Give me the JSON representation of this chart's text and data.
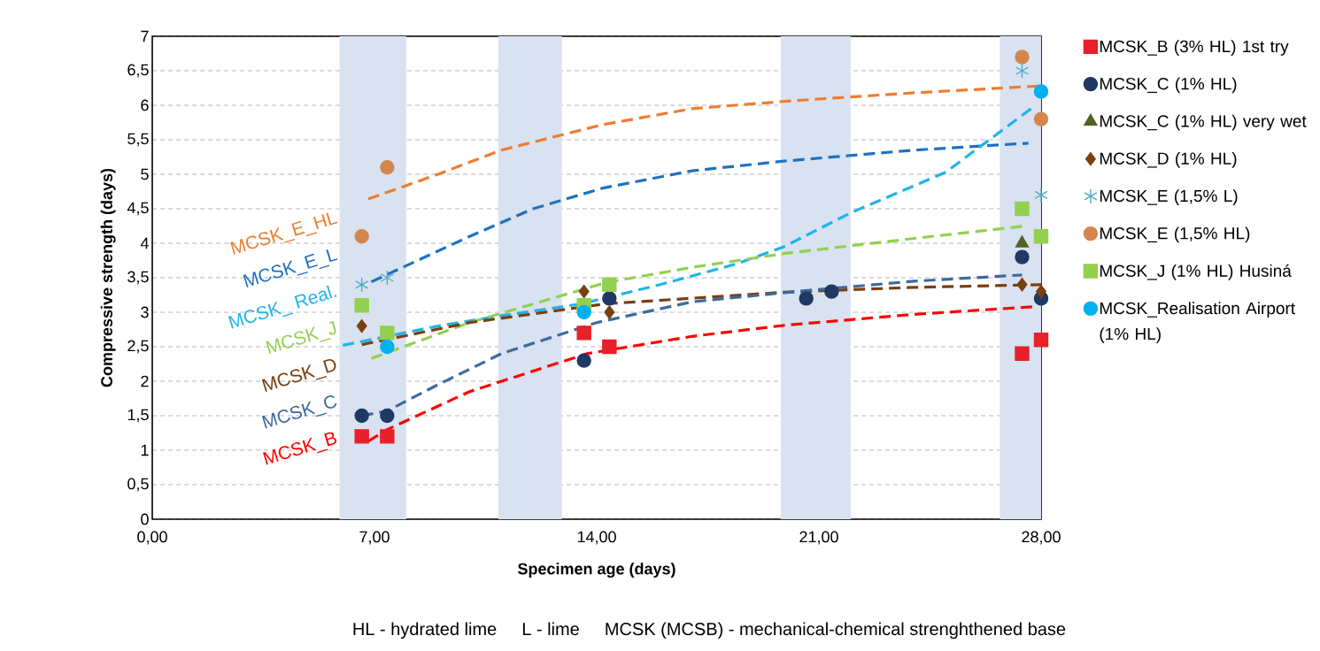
{
  "chart_data": {
    "type": "scatter",
    "xlabel": "Specimen age (days)",
    "ylabel": "Compressive strength (days)",
    "xlim": [
      0,
      28
    ],
    "ylim": [
      0,
      7
    ],
    "xticks": [
      {
        "value": 0,
        "label": "0,00"
      },
      {
        "value": 7,
        "label": "7,00"
      },
      {
        "value": 14,
        "label": "14,00"
      },
      {
        "value": 21,
        "label": "21,00"
      },
      {
        "value": 28,
        "label": "28,00"
      }
    ],
    "yticks": [
      0,
      {
        "value": 0.5,
        "label": "0,5"
      },
      1,
      {
        "value": 1.5,
        "label": "1,5"
      },
      2,
      {
        "value": 2.5,
        "label": "2,5"
      },
      3,
      {
        "value": 3.5,
        "label": "3,5"
      },
      4,
      {
        "value": 4.5,
        "label": "4,5"
      },
      5,
      {
        "value": 5.5,
        "label": "5,5"
      },
      6,
      {
        "value": 6.5,
        "label": "6,5"
      },
      7
    ],
    "grid": "y",
    "legend": "right",
    "bands": [
      {
        "axis": "x",
        "from": 5.9,
        "to": 8.0,
        "color": "#d9e2f1"
      },
      {
        "axis": "x",
        "from": 10.9,
        "to": 12.9,
        "color": "#d9e2f1"
      },
      {
        "axis": "x",
        "from": 19.8,
        "to": 22.0,
        "color": "#d9e2f1"
      },
      {
        "axis": "x",
        "from": 26.7,
        "to": 28,
        "color": "#d9e2f1"
      }
    ],
    "series": [
      {
        "type": "line",
        "name": "MCSK_E_HL",
        "color": "#ed7d31",
        "line_style": "dashed",
        "marker": "none",
        "x": [
          6.8,
          9,
          11,
          14.2,
          17,
          20,
          24,
          28
        ],
        "values": [
          4.64,
          5.0,
          5.35,
          5.72,
          5.95,
          6.06,
          6.18,
          6.28
        ]
      },
      {
        "type": "line",
        "name": "MCSK_E_L",
        "color": "#1f72c0",
        "line_style": "dashed",
        "marker": "none",
        "x": [
          6.9,
          10,
          12,
          14.2,
          17,
          19.9,
          24,
          27.6
        ],
        "values": [
          3.44,
          4.1,
          4.5,
          4.8,
          5.05,
          5.19,
          5.35,
          5.45
        ]
      },
      {
        "type": "line",
        "name": "MCSK_ Real.",
        "color": "#1fb4ea",
        "line_style": "dashed",
        "marker": "none",
        "x": [
          6.0,
          9,
          11,
          13.5,
          16,
          18.4,
          19.9,
          22,
          25,
          27.8
        ],
        "values": [
          2.52,
          2.8,
          2.95,
          3.12,
          3.4,
          3.7,
          3.95,
          4.44,
          5.03,
          5.99
        ]
      },
      {
        "type": "line",
        "name": "MCSK_J",
        "color": "#92d050",
        "line_style": "dashed",
        "marker": "none",
        "x": [
          6.9,
          10,
          14.3,
          17,
          19.9,
          24,
          27.5
        ],
        "values": [
          2.33,
          2.85,
          3.43,
          3.65,
          3.85,
          4.07,
          4.25
        ]
      },
      {
        "type": "line",
        "name": "MCSK_D",
        "color": "#7b3f10",
        "line_style": "dashed",
        "marker": "none",
        "x": [
          6.6,
          10,
          14.25,
          19.9,
          24,
          28
        ],
        "values": [
          2.53,
          2.85,
          3.12,
          3.29,
          3.36,
          3.4
        ]
      },
      {
        "type": "line",
        "name": "MCSK_C",
        "color": "#3d6aa0",
        "line_style": "dashed",
        "marker": "none",
        "x": [
          6.6,
          7.4,
          9,
          11,
          14,
          17,
          20.5,
          24,
          27.4
        ],
        "values": [
          1.5,
          1.57,
          1.95,
          2.4,
          2.85,
          3.15,
          3.31,
          3.45,
          3.54
        ]
      },
      {
        "type": "line",
        "name": "MCSK_B",
        "color": "#ff0000",
        "line_style": "dashed",
        "marker": "none",
        "x": [
          6.8,
          7.4,
          10,
          13.7,
          17,
          19.9,
          24,
          27.8
        ],
        "values": [
          1.13,
          1.3,
          1.85,
          2.4,
          2.65,
          2.81,
          2.97,
          3.08
        ]
      },
      {
        "name": "MCSK_B (3% HL) 1st try",
        "color": "#e8202a",
        "marker": "square",
        "x": [
          6.6,
          7.4,
          13.6,
          14.4,
          27.4,
          28
        ],
        "values": [
          1.2,
          1.2,
          2.7,
          2.5,
          2.4,
          2.6
        ]
      },
      {
        "name": "MCSK_C (1% HL)",
        "color": "#1f3864",
        "marker": "circle",
        "x": [
          6.6,
          7.4,
          13.6,
          14.4,
          20.6,
          21.4,
          27.4,
          28
        ],
        "values": [
          1.5,
          1.5,
          2.3,
          3.2,
          3.2,
          3.3,
          3.8,
          3.2
        ]
      },
      {
        "name": "MCSK_C (1% HL) very wet",
        "color": "#4f6228",
        "marker": "triangle",
        "x": [
          27.4
        ],
        "values": [
          4.0
        ]
      },
      {
        "name": "MCSK_D (1% HL)",
        "color": "#7b3f10",
        "marker": "diamond",
        "x": [
          6.6,
          13.6,
          14.4,
          27.4,
          28
        ],
        "values": [
          2.8,
          3.3,
          3.0,
          3.4,
          3.3
        ]
      },
      {
        "name": "MCSK_E (1,5% L)",
        "color": "#4bacc6",
        "marker": "cross",
        "x": [
          6.6,
          7.4,
          27.4,
          28
        ],
        "values": [
          3.4,
          3.5,
          6.5,
          4.7
        ]
      },
      {
        "name": "MCSK_E (1,5% HL)",
        "color": "#d4874d",
        "marker": "circle",
        "x": [
          6.6,
          7.4,
          27.4,
          28
        ],
        "values": [
          4.1,
          5.1,
          6.7,
          5.8
        ]
      },
      {
        "name": "MCSK_J (1% HL) Husiná",
        "color": "#92d050",
        "marker": "square",
        "x": [
          6.6,
          7.4,
          13.6,
          14.4,
          27.4,
          28
        ],
        "values": [
          3.1,
          2.7,
          3.1,
          3.4,
          4.5,
          4.1
        ]
      },
      {
        "name": "MCSK_Realisation Airport (1% HL)",
        "color": "#00b0f0",
        "marker": "circle",
        "x": [
          7.4,
          13.6,
          28
        ],
        "values": [
          2.5,
          3.0,
          6.2
        ]
      }
    ],
    "annotations": [
      "HL - hydrated lime",
      "L - lime",
      "MCSK (MCSB) - mechanical-chemical strenghthened base"
    ]
  }
}
